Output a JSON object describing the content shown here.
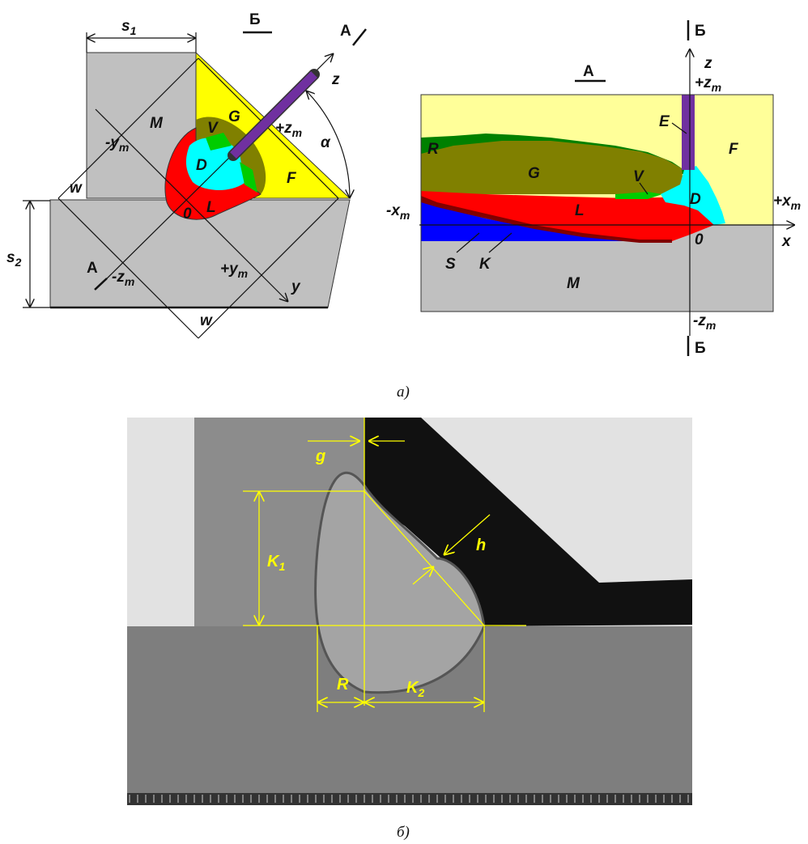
{
  "figure_a": {
    "caption": "а)",
    "cross_section": {
      "s1": {
        "base": "s",
        "sub": "1"
      },
      "section_b": "Б",
      "section_a_top": "А",
      "z": "z",
      "M": "M",
      "V": "V",
      "G": "G",
      "neg_ym": {
        "base": "-y",
        "sub": "m"
      },
      "pos_zm": {
        "base": "+z",
        "sub": "m"
      },
      "alpha": "α",
      "D": "D",
      "F": "F",
      "w_left": "w",
      "origin": "0",
      "L": "L",
      "s2": {
        "base": "s",
        "sub": "2"
      },
      "section_a_bottom": "А",
      "neg_zm": {
        "base": "-z",
        "sub": "m"
      },
      "pos_ym": {
        "base": "+y",
        "sub": "m"
      },
      "y": "y",
      "w_bottom": "w"
    },
    "longitudinal_section": {
      "section_b_top": "Б",
      "section_a": "А",
      "z": "z",
      "pos_zm": {
        "base": "+z",
        "sub": "m"
      },
      "E": "E",
      "F": "F",
      "R": "R",
      "G": "G",
      "V": "V",
      "D": "D",
      "pos_xm": {
        "base": "+x",
        "sub": "m"
      },
      "neg_xm": {
        "base": "-x",
        "sub": "m"
      },
      "L": "L",
      "origin": "0",
      "x": "x",
      "S": "S",
      "K": "K",
      "M": "M",
      "neg_zm": {
        "base": "-z",
        "sub": "m"
      },
      "section_b_bottom": "Б"
    }
  },
  "figure_b": {
    "caption": "б)",
    "g": "g",
    "h": "h",
    "K1": {
      "base": "K",
      "sub": "1"
    },
    "R": "R",
    "K2": {
      "base": "K",
      "sub": "2"
    }
  }
}
